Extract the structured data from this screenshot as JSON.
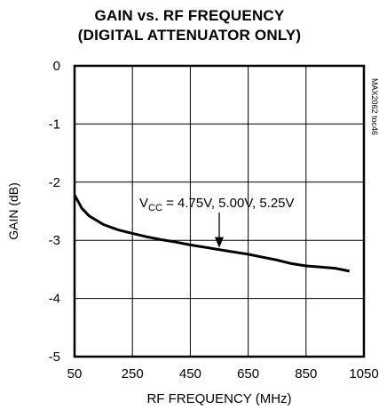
{
  "chart_data": {
    "type": "line",
    "title": "GAIN vs. RF FREQUENCY",
    "subtitle": "(DIGITAL ATTENUATOR ONLY)",
    "xlabel": "RF FREQUENCY (MHz)",
    "ylabel": "GAIN (dB)",
    "xlim": [
      50,
      1050
    ],
    "ylim": [
      -5,
      0
    ],
    "x_ticks": [
      "50",
      "250",
      "450",
      "650",
      "850",
      "1050"
    ],
    "y_ticks": [
      "0",
      "-1",
      "-2",
      "-3",
      "-4",
      "-5"
    ],
    "grid": true,
    "annotation": {
      "prefix": "V",
      "subscript": "CC",
      "text": " = 4.75V, 5.00V, 5.25V",
      "arrow_to": [
        550,
        -3.16
      ]
    },
    "watermark": "MAX2062 toc46",
    "series": [
      {
        "x": [
          50,
          75,
          100,
          150,
          200,
          250,
          300,
          350,
          400,
          450,
          500,
          550,
          600,
          650,
          700,
          750,
          800,
          850,
          900,
          950,
          1000
        ],
        "values": [
          -2.22,
          -2.45,
          -2.58,
          -2.73,
          -2.82,
          -2.88,
          -2.94,
          -2.99,
          -3.03,
          -3.08,
          -3.12,
          -3.16,
          -3.2,
          -3.24,
          -3.29,
          -3.34,
          -3.4,
          -3.44,
          -3.46,
          -3.48,
          -3.53
        ]
      }
    ]
  }
}
